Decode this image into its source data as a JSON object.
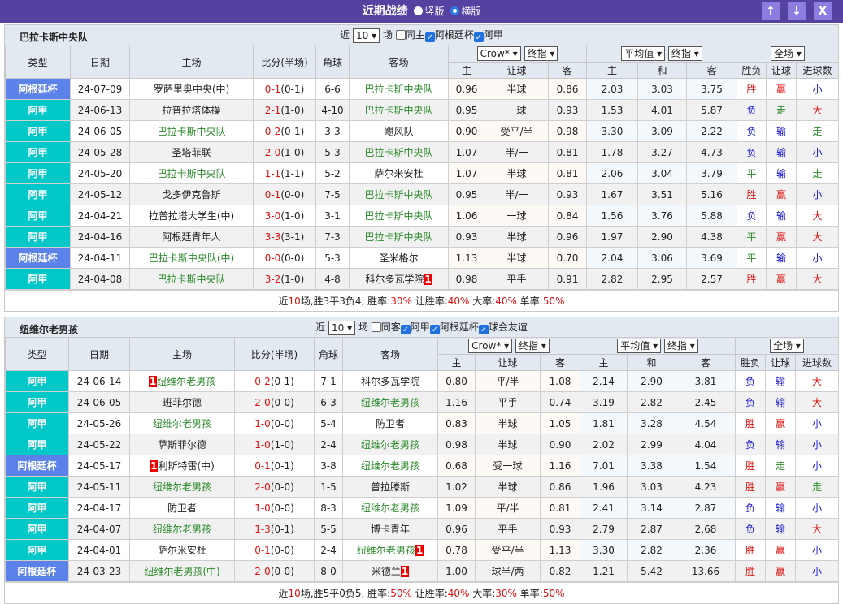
{
  "header": {
    "title": "近期战绩",
    "options": [
      "竖版",
      "横版"
    ],
    "selected": "横版",
    "buttons": [
      "↑",
      "↓",
      "X"
    ]
  },
  "colors": {
    "header": "#5441a0",
    "league_a": "#00c8c8",
    "league_cup": "#5b82e8",
    "team": "#2a8a2a",
    "win": "#e01010",
    "lose": "#1a1ad0",
    "draw": "#2a8a2a"
  },
  "labels": {
    "near": "近",
    "games": "场",
    "cols": [
      "类型",
      "日期",
      "主场",
      "比分(半场)",
      "角球",
      "客场"
    ],
    "sub": [
      "主",
      "让球",
      "客",
      "主",
      "和",
      "客",
      "胜负",
      "让球",
      "进球数"
    ],
    "sel_company": "Crow*",
    "sel_final": "终指",
    "sel_avg": "平均值",
    "sel_full": "全场"
  },
  "sections": [
    {
      "team": "巴拉卡斯中央队",
      "count": "10",
      "filters": [
        {
          "label": "同主",
          "checked": false
        },
        {
          "label": "阿根廷杯",
          "checked": true
        },
        {
          "label": "阿甲",
          "checked": true
        }
      ],
      "rows": [
        [
          "阿根廷杯",
          "24-07-09",
          "罗萨里奥中央(中)",
          "",
          "0-1",
          "(0-1)",
          "6-6",
          "巴拉卡斯中央队",
          "",
          "0.96",
          "半球",
          "0.86",
          "2.03",
          "3.03",
          "3.75",
          "胜",
          "赢",
          "小"
        ],
        [
          "阿甲",
          "24-06-13",
          "拉普拉塔体操",
          "",
          "2-1",
          "(1-0)",
          "4-10",
          "巴拉卡斯中央队",
          "",
          "0.95",
          "一球",
          "0.93",
          "1.53",
          "4.01",
          "5.87",
          "负",
          "走",
          "大"
        ],
        [
          "阿甲",
          "24-06-05",
          "巴拉卡斯中央队",
          "",
          "0-2",
          "(0-1)",
          "3-3",
          "飓风队",
          "",
          "0.90",
          "受平/半",
          "0.98",
          "3.30",
          "3.09",
          "2.22",
          "负",
          "输",
          "走"
        ],
        [
          "阿甲",
          "24-05-28",
          "圣塔菲联",
          "",
          "2-0",
          "(1-0)",
          "5-3",
          "巴拉卡斯中央队",
          "",
          "1.07",
          "半/一",
          "0.81",
          "1.78",
          "3.27",
          "4.73",
          "负",
          "输",
          "小"
        ],
        [
          "阿甲",
          "24-05-20",
          "巴拉卡斯中央队",
          "",
          "1-1",
          "(1-1)",
          "5-2",
          "萨尔米安杜",
          "",
          "1.07",
          "半球",
          "0.81",
          "2.06",
          "3.04",
          "3.79",
          "平",
          "输",
          "走"
        ],
        [
          "阿甲",
          "24-05-12",
          "戈多伊克鲁斯",
          "",
          "0-1",
          "(0-0)",
          "7-5",
          "巴拉卡斯中央队",
          "",
          "0.95",
          "半/一",
          "0.93",
          "1.67",
          "3.51",
          "5.16",
          "胜",
          "赢",
          "小"
        ],
        [
          "阿甲",
          "24-04-21",
          "拉普拉塔大学生(中)",
          "",
          "3-0",
          "(1-0)",
          "3-1",
          "巴拉卡斯中央队",
          "",
          "1.06",
          "一球",
          "0.84",
          "1.56",
          "3.76",
          "5.88",
          "负",
          "输",
          "大"
        ],
        [
          "阿甲",
          "24-04-16",
          "阿根廷青年人",
          "",
          "3-3",
          "(3-1)",
          "7-3",
          "巴拉卡斯中央队",
          "",
          "0.93",
          "半球",
          "0.96",
          "1.97",
          "2.90",
          "4.38",
          "平",
          "赢",
          "大"
        ],
        [
          "阿根廷杯",
          "24-04-11",
          "巴拉卡斯中央队(中)",
          "",
          "0-0",
          "(0-0)",
          "5-3",
          "圣米格尔",
          "",
          "1.13",
          "半球",
          "0.70",
          "2.04",
          "3.06",
          "3.69",
          "平",
          "输",
          "小"
        ],
        [
          "阿甲",
          "24-04-08",
          "巴拉卡斯中央队",
          "",
          "3-2",
          "(1-0)",
          "4-8",
          "科尔多瓦学院",
          "1",
          "0.98",
          "平手",
          "0.91",
          "2.82",
          "2.95",
          "2.57",
          "胜",
          "赢",
          "大"
        ]
      ],
      "summary": {
        "p1": "近",
        "n": "10",
        "p2": "场,胜3平3负4, 胜率:",
        "win": "30%",
        "p3": " 让胜率:",
        "hc": "40%",
        "p4": " 大率:",
        "big": "40%",
        "p5": " 单率:",
        "odd": "50%"
      }
    },
    {
      "team": "纽维尔老男孩",
      "count": "10",
      "filters": [
        {
          "label": "同客",
          "checked": false
        },
        {
          "label": "阿甲",
          "checked": true
        },
        {
          "label": "阿根廷杯",
          "checked": true
        },
        {
          "label": "球会友谊",
          "checked": true
        }
      ],
      "rows": [
        [
          "阿甲",
          "24-06-14",
          "纽维尔老男孩",
          "1",
          "0-2",
          "(0-1)",
          "7-1",
          "科尔多瓦学院",
          "",
          "0.80",
          "平/半",
          "1.08",
          "2.14",
          "2.90",
          "3.81",
          "负",
          "输",
          "大"
        ],
        [
          "阿甲",
          "24-06-05",
          "班菲尔德",
          "",
          "2-0",
          "(0-0)",
          "6-3",
          "纽维尔老男孩",
          "",
          "1.16",
          "平手",
          "0.74",
          "3.19",
          "2.82",
          "2.45",
          "负",
          "输",
          "大"
        ],
        [
          "阿甲",
          "24-05-26",
          "纽维尔老男孩",
          "",
          "1-0",
          "(0-0)",
          "5-4",
          "防卫者",
          "",
          "0.83",
          "半球",
          "1.05",
          "1.81",
          "3.28",
          "4.54",
          "胜",
          "赢",
          "小"
        ],
        [
          "阿甲",
          "24-05-22",
          "萨斯菲尔德",
          "",
          "1-0",
          "(1-0)",
          "2-4",
          "纽维尔老男孩",
          "",
          "0.98",
          "半球",
          "0.90",
          "2.02",
          "2.99",
          "4.04",
          "负",
          "输",
          "小"
        ],
        [
          "阿根廷杯",
          "24-05-17",
          "利斯特雷(中)",
          "1",
          "0-1",
          "(0-1)",
          "3-8",
          "纽维尔老男孩",
          "",
          "0.68",
          "受一球",
          "1.16",
          "7.01",
          "3.38",
          "1.54",
          "胜",
          "走",
          "小"
        ],
        [
          "阿甲",
          "24-05-11",
          "纽维尔老男孩",
          "",
          "2-0",
          "(0-0)",
          "1-5",
          "普拉滕斯",
          "",
          "1.02",
          "半球",
          "0.86",
          "1.96",
          "3.03",
          "4.23",
          "胜",
          "赢",
          "走"
        ],
        [
          "阿甲",
          "24-04-17",
          "防卫者",
          "",
          "1-0",
          "(0-0)",
          "8-3",
          "纽维尔老男孩",
          "",
          "1.09",
          "平/半",
          "0.81",
          "2.41",
          "3.14",
          "2.87",
          "负",
          "输",
          "小"
        ],
        [
          "阿甲",
          "24-04-07",
          "纽维尔老男孩",
          "",
          "1-3",
          "(0-1)",
          "5-5",
          "博卡青年",
          "",
          "0.96",
          "平手",
          "0.93",
          "2.79",
          "2.87",
          "2.68",
          "负",
          "输",
          "大"
        ],
        [
          "阿甲",
          "24-04-01",
          "萨尔米安杜",
          "",
          "0-1",
          "(0-0)",
          "2-4",
          "纽维尔老男孩",
          "1",
          "0.78",
          "受平/半",
          "1.13",
          "3.30",
          "2.82",
          "2.36",
          "胜",
          "赢",
          "小"
        ],
        [
          "阿根廷杯",
          "24-03-23",
          "纽维尔老男孩(中)",
          "",
          "2-0",
          "(0-0)",
          "8-0",
          "米德兰",
          "1",
          "1.00",
          "球半/两",
          "0.82",
          "1.21",
          "5.42",
          "13.66",
          "胜",
          "赢",
          "小"
        ]
      ],
      "summary": {
        "p1": "近",
        "n": "10",
        "p2": "场,胜5平0负5, 胜率:",
        "win": "50%",
        "p3": " 让胜率:",
        "hc": "40%",
        "p4": " 大率:",
        "big": "30%",
        "p5": " 单率:",
        "odd": "50%"
      }
    }
  ]
}
